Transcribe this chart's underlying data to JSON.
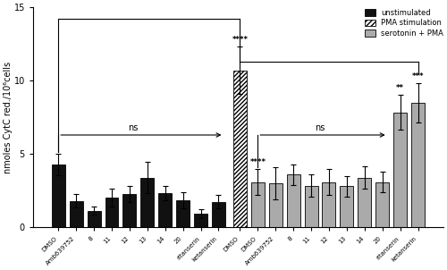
{
  "black_labels": [
    "DMSO",
    "Amb639752",
    "8",
    "11",
    "12",
    "13",
    "14",
    "20",
    "ritanserin",
    "ketanserin"
  ],
  "black_values": [
    4.3,
    1.8,
    1.15,
    2.05,
    2.3,
    3.4,
    2.35,
    1.85,
    0.95,
    1.75
  ],
  "black_errors": [
    0.75,
    0.45,
    0.25,
    0.6,
    0.55,
    1.05,
    0.5,
    0.55,
    0.3,
    0.45
  ],
  "pma_values": [
    10.7
  ],
  "pma_errors": [
    1.6
  ],
  "pma_label": "DMSO",
  "gray_labels": [
    "DMSO",
    "Amb639752",
    "8",
    "11",
    "12",
    "13",
    "14",
    "20",
    "ritanserin",
    "ketanserin"
  ],
  "gray_values": [
    3.1,
    3.0,
    3.6,
    2.85,
    3.1,
    2.8,
    3.4,
    3.1,
    7.85,
    8.5
  ],
  "gray_errors": [
    0.9,
    1.1,
    0.7,
    0.75,
    0.9,
    0.7,
    0.75,
    0.7,
    1.2,
    1.35
  ],
  "ylim": [
    0,
    15
  ],
  "yticks": [
    0,
    5,
    10,
    15
  ],
  "ylabel": "nmoles CytC red./10⁶cells",
  "bar_width": 0.75,
  "black_color": "#111111",
  "gray_color": "#aaaaaa",
  "legend_labels": [
    "unstimulated",
    "PMA stimulation",
    "serotonin + PMA"
  ],
  "figure_bg": "#ffffff"
}
